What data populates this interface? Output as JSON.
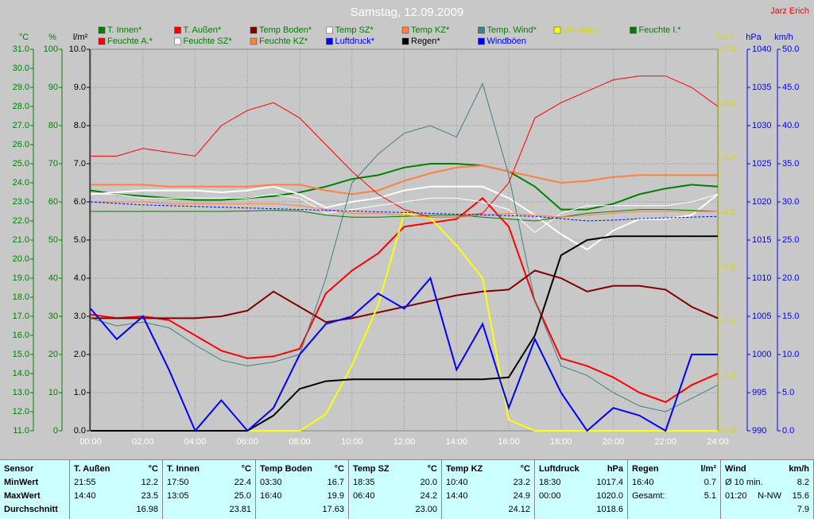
{
  "chart_data": {
    "type": "line",
    "title": "Samstag, 12.09.2009",
    "author": "Jarz Erich",
    "x": [
      0,
      1,
      2,
      3,
      4,
      5,
      6,
      7,
      8,
      9,
      10,
      11,
      12,
      13,
      14,
      15,
      16,
      17,
      18,
      19,
      20,
      21,
      22,
      23,
      24
    ],
    "xlim": [
      0,
      24
    ],
    "xticks": [
      {
        "value": 0,
        "label": "00:00"
      },
      {
        "value": 2,
        "label": "02:00"
      },
      {
        "value": 4,
        "label": "04:00"
      },
      {
        "value": 6,
        "label": "06:00"
      },
      {
        "value": 8,
        "label": "08:00"
      },
      {
        "value": 10,
        "label": "10:00"
      },
      {
        "value": 12,
        "label": "12:00"
      },
      {
        "value": 14,
        "label": "14:00"
      },
      {
        "value": 16,
        "label": "16:00"
      },
      {
        "value": 18,
        "label": "18:00"
      },
      {
        "value": 20,
        "label": "20:00"
      },
      {
        "value": 22,
        "label": "22:00"
      },
      {
        "value": 24,
        "label": "24:00"
      }
    ],
    "axes": [
      {
        "unit": "°C",
        "side": "left",
        "color": "#008000",
        "lim": [
          11,
          31
        ],
        "ticks": [
          {
            "value": 11,
            "label": "11.0"
          },
          {
            "value": 12,
            "label": "12.0"
          },
          {
            "value": 13,
            "label": "13.0"
          },
          {
            "value": 14,
            "label": "14.0"
          },
          {
            "value": 15,
            "label": "15.0"
          },
          {
            "value": 16,
            "label": "16.0"
          },
          {
            "value": 17,
            "label": "17.0"
          },
          {
            "value": 18,
            "label": "18.0"
          },
          {
            "value": 19,
            "label": "19.0"
          },
          {
            "value": 20,
            "label": "20.0"
          },
          {
            "value": 21,
            "label": "21.0"
          },
          {
            "value": 22,
            "label": "22.0"
          },
          {
            "value": 23,
            "label": "23.0"
          },
          {
            "value": 24,
            "label": "24.0"
          },
          {
            "value": 25,
            "label": "25.0"
          },
          {
            "value": 26,
            "label": "26.0"
          },
          {
            "value": 27,
            "label": "27.0"
          },
          {
            "value": 28,
            "label": "28.0"
          },
          {
            "value": 29,
            "label": "29.0"
          },
          {
            "value": 30,
            "label": "30.0"
          },
          {
            "value": 31,
            "label": "31.0"
          }
        ]
      },
      {
        "unit": "%",
        "side": "left",
        "color": "#008000",
        "lim": [
          0,
          100
        ],
        "ticks": [
          0,
          10,
          20,
          30,
          40,
          50,
          60,
          70,
          80,
          90,
          100
        ]
      },
      {
        "unit": "l/m²",
        "side": "left",
        "color": "#000000",
        "lim": [
          0,
          10
        ],
        "grid": true,
        "ticks": [
          {
            "value": 0,
            "label": "0.0"
          },
          {
            "value": 1,
            "label": "1.0"
          },
          {
            "value": 2,
            "label": "2.0"
          },
          {
            "value": 3,
            "label": "3.0"
          },
          {
            "value": 4,
            "label": "4.0"
          },
          {
            "value": 5,
            "label": "5.0"
          },
          {
            "value": 6,
            "label": "6.0"
          },
          {
            "value": 7,
            "label": "7.0"
          },
          {
            "value": 8,
            "label": "8.0"
          },
          {
            "value": 9,
            "label": "9.0"
          },
          {
            "value": 10,
            "label": "10.0"
          }
        ]
      },
      {
        "unit": "UV-I",
        "side": "right",
        "color": "#d8d800",
        "lim": [
          0,
          7
        ],
        "ticks": [
          {
            "value": 0,
            "label": "0.0"
          },
          {
            "value": 1,
            "label": "1.0"
          },
          {
            "value": 2,
            "label": "2.0"
          },
          {
            "value": 3,
            "label": "3.0"
          },
          {
            "value": 4,
            "label": "4.0"
          },
          {
            "value": 5,
            "label": "5.0"
          },
          {
            "value": 6,
            "label": "6.0"
          },
          {
            "value": 7,
            "label": "7.0"
          }
        ]
      },
      {
        "unit": "hPa",
        "side": "right",
        "color": "#0000ff",
        "lim": [
          990,
          1040
        ],
        "ticks": [
          990,
          995,
          1000,
          1005,
          1010,
          1015,
          1020,
          1025,
          1030,
          1035,
          1040
        ]
      },
      {
        "unit": "km/h",
        "side": "right",
        "color": "#0000ff",
        "lim": [
          0,
          50
        ],
        "ticks": [
          {
            "value": 0,
            "label": "0.0"
          },
          {
            "value": 5,
            "label": "5.0"
          },
          {
            "value": 10,
            "label": "10.0"
          },
          {
            "value": 15,
            "label": "15.0"
          },
          {
            "value": 20,
            "label": "20.0"
          },
          {
            "value": 25,
            "label": "25.0"
          },
          {
            "value": 30,
            "label": "30.0"
          },
          {
            "value": 35,
            "label": "35.0"
          },
          {
            "value": 40,
            "label": "40.0"
          },
          {
            "value": 45,
            "label": "45.0"
          },
          {
            "value": 50,
            "label": "50.0"
          }
        ]
      }
    ],
    "series": [
      {
        "name": "T. Innen*",
        "color": "#008000",
        "axis": 0,
        "width": 2,
        "values": [
          23.6,
          23.4,
          23.3,
          23.2,
          23.1,
          23.1,
          23.2,
          23.3,
          23.5,
          23.8,
          24.2,
          24.4,
          24.8,
          25.0,
          25.0,
          24.9,
          24.6,
          23.8,
          22.6,
          22.6,
          22.9,
          23.4,
          23.7,
          23.9,
          23.8
        ]
      },
      {
        "name": "T. Außen*",
        "color": "#ff0000",
        "axis": 0,
        "width": 2,
        "values": [
          17.1,
          16.9,
          17.0,
          16.8,
          16.0,
          15.2,
          14.8,
          14.9,
          15.3,
          18.2,
          19.4,
          20.3,
          21.7,
          21.9,
          22.1,
          23.2,
          21.7,
          17.8,
          14.8,
          14.4,
          13.8,
          13.0,
          12.5,
          13.4,
          14.0
        ]
      },
      {
        "name": "Temp Boden*",
        "color": "#800000",
        "axis": 0,
        "width": 2,
        "values": [
          16.9,
          16.9,
          16.9,
          16.9,
          16.9,
          17.0,
          17.3,
          18.3,
          17.5,
          16.7,
          16.9,
          17.2,
          17.5,
          17.8,
          18.1,
          18.3,
          18.4,
          19.4,
          19.0,
          18.3,
          18.6,
          18.6,
          18.4,
          17.5,
          16.9
        ]
      },
      {
        "name": "Temp SZ*",
        "color": "#ffffff",
        "axis": 0,
        "width": 2,
        "values": [
          23.4,
          23.5,
          23.6,
          23.6,
          23.6,
          23.5,
          23.6,
          23.8,
          23.4,
          22.7,
          23.0,
          23.2,
          23.6,
          23.8,
          23.8,
          23.8,
          23.2,
          22.3,
          21.3,
          20.5,
          21.5,
          22.1,
          22.1,
          22.3,
          23.4
        ]
      },
      {
        "name": "Temp KZ*",
        "color": "#ff8040",
        "axis": 0,
        "width": 2,
        "values": [
          23.9,
          23.9,
          23.9,
          23.8,
          23.8,
          23.8,
          23.8,
          23.9,
          23.9,
          23.6,
          23.4,
          23.6,
          24.1,
          24.5,
          24.8,
          24.9,
          24.6,
          24.3,
          24.0,
          24.1,
          24.3,
          24.4,
          24.4,
          24.4,
          24.4
        ]
      },
      {
        "name": "Temp. Wind*",
        "color": "#408080",
        "axis": 0,
        "width": 1,
        "values": [
          16.9,
          16.5,
          16.7,
          16.4,
          15.5,
          14.7,
          14.4,
          14.6,
          15.0,
          19.0,
          24.0,
          25.5,
          26.6,
          27.0,
          26.4,
          29.2,
          24.4,
          17.8,
          14.4,
          13.9,
          13.0,
          12.3,
          12.0,
          12.7,
          13.4
        ]
      },
      {
        "name": "UV Index",
        "color": "#ffff00",
        "axis": 3,
        "width": 2,
        "values": [
          0,
          0,
          0,
          0,
          0,
          0,
          0,
          0,
          0,
          0.3,
          1.2,
          2.3,
          4.0,
          3.9,
          3.4,
          2.8,
          0.2,
          0,
          0,
          0,
          0,
          0,
          0,
          0,
          0
        ]
      },
      {
        "name": "Feuchte I.*",
        "color": "#008000",
        "axis": 1,
        "width": 1,
        "values": [
          57.5,
          57.5,
          57.5,
          57.5,
          57.5,
          57.5,
          57.6,
          57.8,
          57.6,
          56.5,
          56.0,
          56.0,
          56.2,
          56.5,
          56.5,
          56.0,
          55.5,
          55.0,
          56.0,
          57.0,
          57.5,
          58.0,
          58.0,
          57.8,
          57.5
        ]
      },
      {
        "name": "Feuchte A.*",
        "color": "#ff0000",
        "axis": 1,
        "width": 1,
        "values": [
          72,
          72,
          74,
          73,
          72,
          80,
          84,
          86,
          82,
          75,
          68,
          62,
          58,
          56,
          56,
          57,
          65,
          82,
          86,
          89,
          92,
          93,
          93,
          90,
          85
        ]
      },
      {
        "name": "Feuchte SZ*",
        "color": "#ffffff",
        "axis": 1,
        "width": 1,
        "values": [
          62,
          62,
          61,
          61,
          61,
          61,
          61,
          62,
          61,
          57,
          58,
          59,
          60,
          61,
          61,
          60,
          58,
          52,
          57,
          59,
          59,
          59,
          59,
          60,
          62
        ]
      },
      {
        "name": "Feuchte KZ*",
        "color": "#ff8040",
        "axis": 1,
        "width": 1,
        "values": [
          60,
          60,
          60,
          59.5,
          59.5,
          59.5,
          59.5,
          59.5,
          59,
          58,
          57,
          57,
          56.5,
          56,
          56,
          56.5,
          57,
          56.5,
          56,
          56.5,
          57,
          57.5,
          57.5,
          57.5,
          57.5
        ]
      },
      {
        "name": "Luftdruck*",
        "color": "#0000ff",
        "axis": 4,
        "width": 1,
        "dashed": true,
        "values": [
          1020.0,
          1019.8,
          1019.6,
          1019.5,
          1019.4,
          1019.3,
          1019.2,
          1019.1,
          1019.0,
          1018.9,
          1018.8,
          1018.7,
          1018.6,
          1018.5,
          1018.4,
          1018.3,
          1018.2,
          1018.1,
          1017.8,
          1017.5,
          1017.6,
          1017.8,
          1017.9,
          1018.0,
          1018.1
        ]
      },
      {
        "name": "Regen*",
        "color": "#000000",
        "axis": 2,
        "width": 2,
        "values": [
          0,
          0,
          0,
          0,
          0,
          0,
          0,
          0.4,
          1.1,
          1.3,
          1.35,
          1.35,
          1.35,
          1.35,
          1.35,
          1.35,
          1.4,
          2.5,
          4.6,
          5.0,
          5.1,
          5.1,
          5.1,
          5.1,
          5.1
        ]
      },
      {
        "name": "Windböen",
        "color": "#0000ff",
        "axis": 5,
        "width": 2,
        "values": [
          16,
          12,
          15,
          8,
          0,
          4,
          0,
          3,
          10,
          14,
          15,
          18,
          16,
          20,
          8,
          14,
          3,
          12,
          5,
          0,
          3,
          2,
          0,
          10,
          10
        ]
      }
    ]
  },
  "stats": {
    "row_labels": [
      "Sensor",
      "MinWert",
      "MaxWert",
      "Durchschnitt"
    ],
    "columns": [
      {
        "name": "T. Außen",
        "unit": "°C",
        "rows": [
          [
            "21:55",
            "12.2"
          ],
          [
            "14:40",
            "23.5"
          ],
          [
            "16.98"
          ]
        ]
      },
      {
        "name": "T. Innen",
        "unit": "°C",
        "rows": [
          [
            "17:50",
            "22.4"
          ],
          [
            "13:05",
            "25.0"
          ],
          [
            "23.81"
          ]
        ]
      },
      {
        "name": "Temp Boden",
        "unit": "°C",
        "rows": [
          [
            "03:30",
            "16.7"
          ],
          [
            "16:40",
            "19.9"
          ],
          [
            "17.63"
          ]
        ]
      },
      {
        "name": "Temp SZ",
        "unit": "°C",
        "rows": [
          [
            "18:35",
            "20.0"
          ],
          [
            "06:40",
            "24.2"
          ],
          [
            "23.00"
          ]
        ]
      },
      {
        "name": "Temp KZ",
        "unit": "°C",
        "rows": [
          [
            "10:40",
            "23.2"
          ],
          [
            "14:40",
            "24.9"
          ],
          [
            "24.12"
          ]
        ]
      },
      {
        "name": "Luftdruck",
        "unit": "hPa",
        "rows": [
          [
            "18:30",
            "1017.4"
          ],
          [
            "00:00",
            "1020.0"
          ],
          [
            "1018.6"
          ]
        ]
      },
      {
        "name": "Regen",
        "unit": "l/m²",
        "rows": [
          [
            "16:40",
            "0.7"
          ],
          [
            "Gesamt:",
            "5.1"
          ]
        ]
      },
      {
        "name": "Wind",
        "unit": "km/h",
        "rows": [
          [
            "Ø 10 min.",
            "8.2"
          ],
          [
            "01:20",
            "N-NW",
            "15.6"
          ],
          [
            "7.9"
          ]
        ]
      }
    ]
  }
}
